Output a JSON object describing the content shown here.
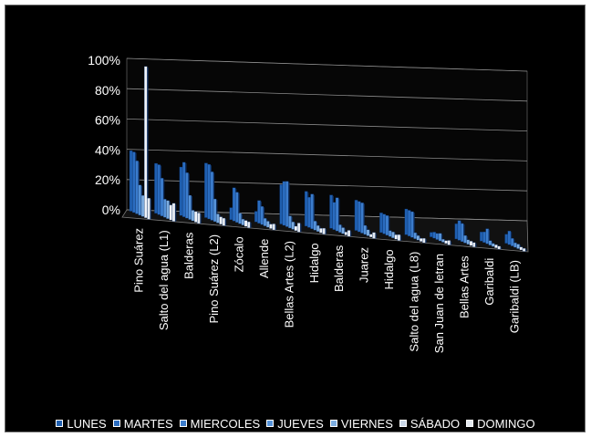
{
  "chart_data": {
    "type": "bar",
    "categories": [
      "Pino Suárez",
      "Salto del agua (L1)",
      "Balderas",
      "Pino Suárez (L2)",
      "Zócalo",
      "Allende",
      "Bellas Artes (L2)",
      "Hidalgo",
      "Balderas",
      "Juarez",
      "Hidalgo",
      "Salto del agua (L8)",
      "San Juan de letran",
      "Bellas Artes",
      "Garibaldi",
      "Garibaldi (LB)"
    ],
    "series": [
      {
        "name": "LUNES",
        "color": "#1f5fb0",
        "values": [
          0.4,
          0.33,
          0.32,
          0.36,
          0.08,
          0.07,
          0.26,
          0.23,
          0.22,
          0.2,
          0.13,
          0.17,
          0.03,
          0.1,
          0.06,
          0.06
        ]
      },
      {
        "name": "MARTES",
        "color": "#2a6cc0",
        "values": [
          0.4,
          0.33,
          0.36,
          0.36,
          0.22,
          0.15,
          0.29,
          0.2,
          0.18,
          0.2,
          0.13,
          0.17,
          0.04,
          0.13,
          0.07,
          0.09
        ]
      },
      {
        "name": "MIERCOLES",
        "color": "#3b7ccc",
        "values": [
          0.35,
          0.25,
          0.3,
          0.32,
          0.2,
          0.12,
          0.3,
          0.23,
          0.22,
          0.2,
          0.13,
          0.17,
          0.04,
          0.12,
          0.1,
          0.05
        ]
      },
      {
        "name": "JUEVES",
        "color": "#5592d8",
        "values": [
          0.2,
          0.12,
          0.16,
          0.15,
          0.07,
          0.05,
          0.08,
          0.06,
          0.05,
          0.06,
          0.04,
          0.04,
          0.05,
          0.05,
          0.03,
          0.03
        ]
      },
      {
        "name": "VIERNES",
        "color": "#7cacdf",
        "values": [
          0.14,
          0.12,
          0.07,
          0.06,
          0.04,
          0.04,
          0.05,
          0.04,
          0.04,
          0.04,
          0.04,
          0.03,
          0.02,
          0.03,
          0.02,
          0.03
        ]
      },
      {
        "name": "SÁBADO",
        "color": "#c9d6e6",
        "values": [
          1.0,
          0.1,
          0.07,
          0.05,
          0.04,
          0.03,
          0.03,
          0.03,
          0.02,
          0.02,
          0.03,
          0.02,
          0.02,
          0.03,
          0.02,
          0.02
        ]
      },
      {
        "name": "DOMINGO",
        "color": "#e4e9f0",
        "values": [
          0.14,
          0.12,
          0.07,
          0.05,
          0.04,
          0.04,
          0.06,
          0.04,
          0.04,
          0.04,
          0.04,
          0.03,
          0.03,
          0.03,
          0.02,
          0.02
        ]
      }
    ],
    "y_ticks": [
      "100%",
      "80%",
      "60%",
      "40%",
      "20%",
      "0%"
    ],
    "ylim": [
      0,
      1
    ],
    "grid": true,
    "legend_position": "bottom"
  }
}
